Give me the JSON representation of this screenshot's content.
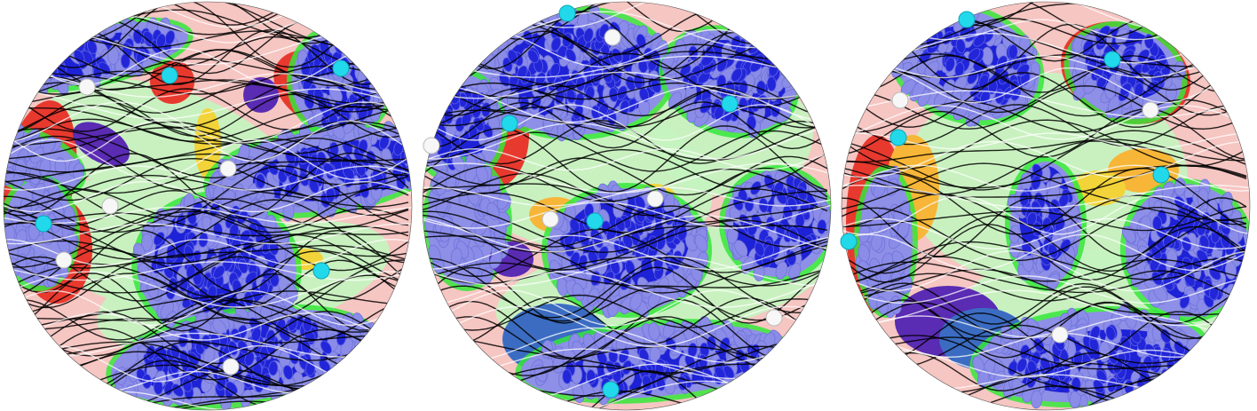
{
  "figure": {
    "panels": [
      {
        "id": "panel-1",
        "colors": {
          "pink": "#f6c6c2",
          "green": "#c6f3c0",
          "bright_green": "#35e63a",
          "red": "#e8392f",
          "yellow": "#f2d43a",
          "orange": "#f7b638",
          "lavender": "#8e8fe6",
          "blue": "#1e22d6",
          "purple": "#5a2bb3",
          "steel": "#3b6cc2",
          "cyan": "#22d9ec",
          "white": "#f7f7f7",
          "black": "#000000"
        }
      },
      {
        "id": "panel-2"
      },
      {
        "id": "panel-3"
      }
    ]
  }
}
